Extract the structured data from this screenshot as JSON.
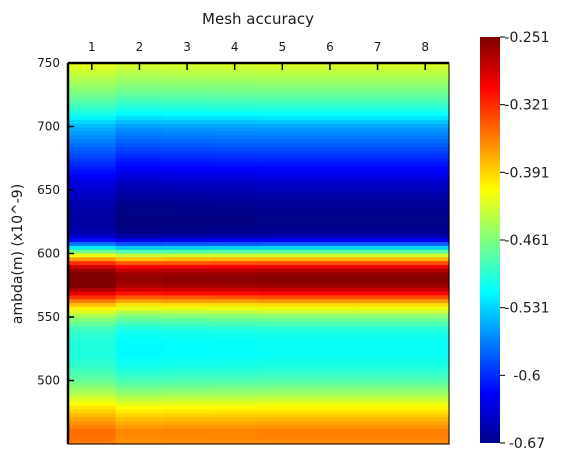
{
  "chart_data": {
    "type": "heatmap",
    "title": "",
    "xlabel": "Mesh accuracy",
    "ylabel": "ambda(m) (x10^-9)",
    "x_categories": [
      "1",
      "2",
      "3",
      "4",
      "5",
      "6",
      "7",
      "8"
    ],
    "x_axis_position": "top",
    "ylim": [
      450,
      750
    ],
    "y_ticks": [
      "750",
      "700",
      "650",
      "600",
      "550",
      "500"
    ],
    "colormap": "jet",
    "colorbar": {
      "min": -0.67,
      "max": -0.251,
      "tick_labels": [
        "-0.251",
        "-0.321",
        "-0.391",
        "-0.461",
        "-0.531",
        "-0.6",
        "-0.67"
      ],
      "placement": "right"
    },
    "wavelength_profile": [
      {
        "y": 450,
        "value": -0.36
      },
      {
        "y": 460,
        "value": -0.355
      },
      {
        "y": 470,
        "value": -0.38
      },
      {
        "y": 480,
        "value": -0.41
      },
      {
        "y": 490,
        "value": -0.45
      },
      {
        "y": 500,
        "value": -0.48
      },
      {
        "y": 510,
        "value": -0.5
      },
      {
        "y": 520,
        "value": -0.51
      },
      {
        "y": 530,
        "value": -0.51
      },
      {
        "y": 540,
        "value": -0.5
      },
      {
        "y": 550,
        "value": -0.46
      },
      {
        "y": 560,
        "value": -0.39
      },
      {
        "y": 565,
        "value": -0.34
      },
      {
        "y": 570,
        "value": -0.29
      },
      {
        "y": 575,
        "value": -0.26
      },
      {
        "y": 580,
        "value": -0.253
      },
      {
        "y": 585,
        "value": -0.26
      },
      {
        "y": 590,
        "value": -0.3
      },
      {
        "y": 595,
        "value": -0.37
      },
      {
        "y": 600,
        "value": -0.45
      },
      {
        "y": 605,
        "value": -0.54
      },
      {
        "y": 610,
        "value": -0.62
      },
      {
        "y": 615,
        "value": -0.66
      },
      {
        "y": 625,
        "value": -0.668
      },
      {
        "y": 640,
        "value": -0.66
      },
      {
        "y": 655,
        "value": -0.64
      },
      {
        "y": 670,
        "value": -0.61
      },
      {
        "y": 685,
        "value": -0.58
      },
      {
        "y": 700,
        "value": -0.55
      },
      {
        "y": 710,
        "value": -0.51
      },
      {
        "y": 725,
        "value": -0.47
      },
      {
        "y": 740,
        "value": -0.44
      },
      {
        "y": 750,
        "value": -0.42
      }
    ],
    "column_offsets": [
      0.012,
      -0.005,
      -0.003,
      -0.002,
      0.0,
      0.0,
      0.0,
      0.0
    ]
  }
}
